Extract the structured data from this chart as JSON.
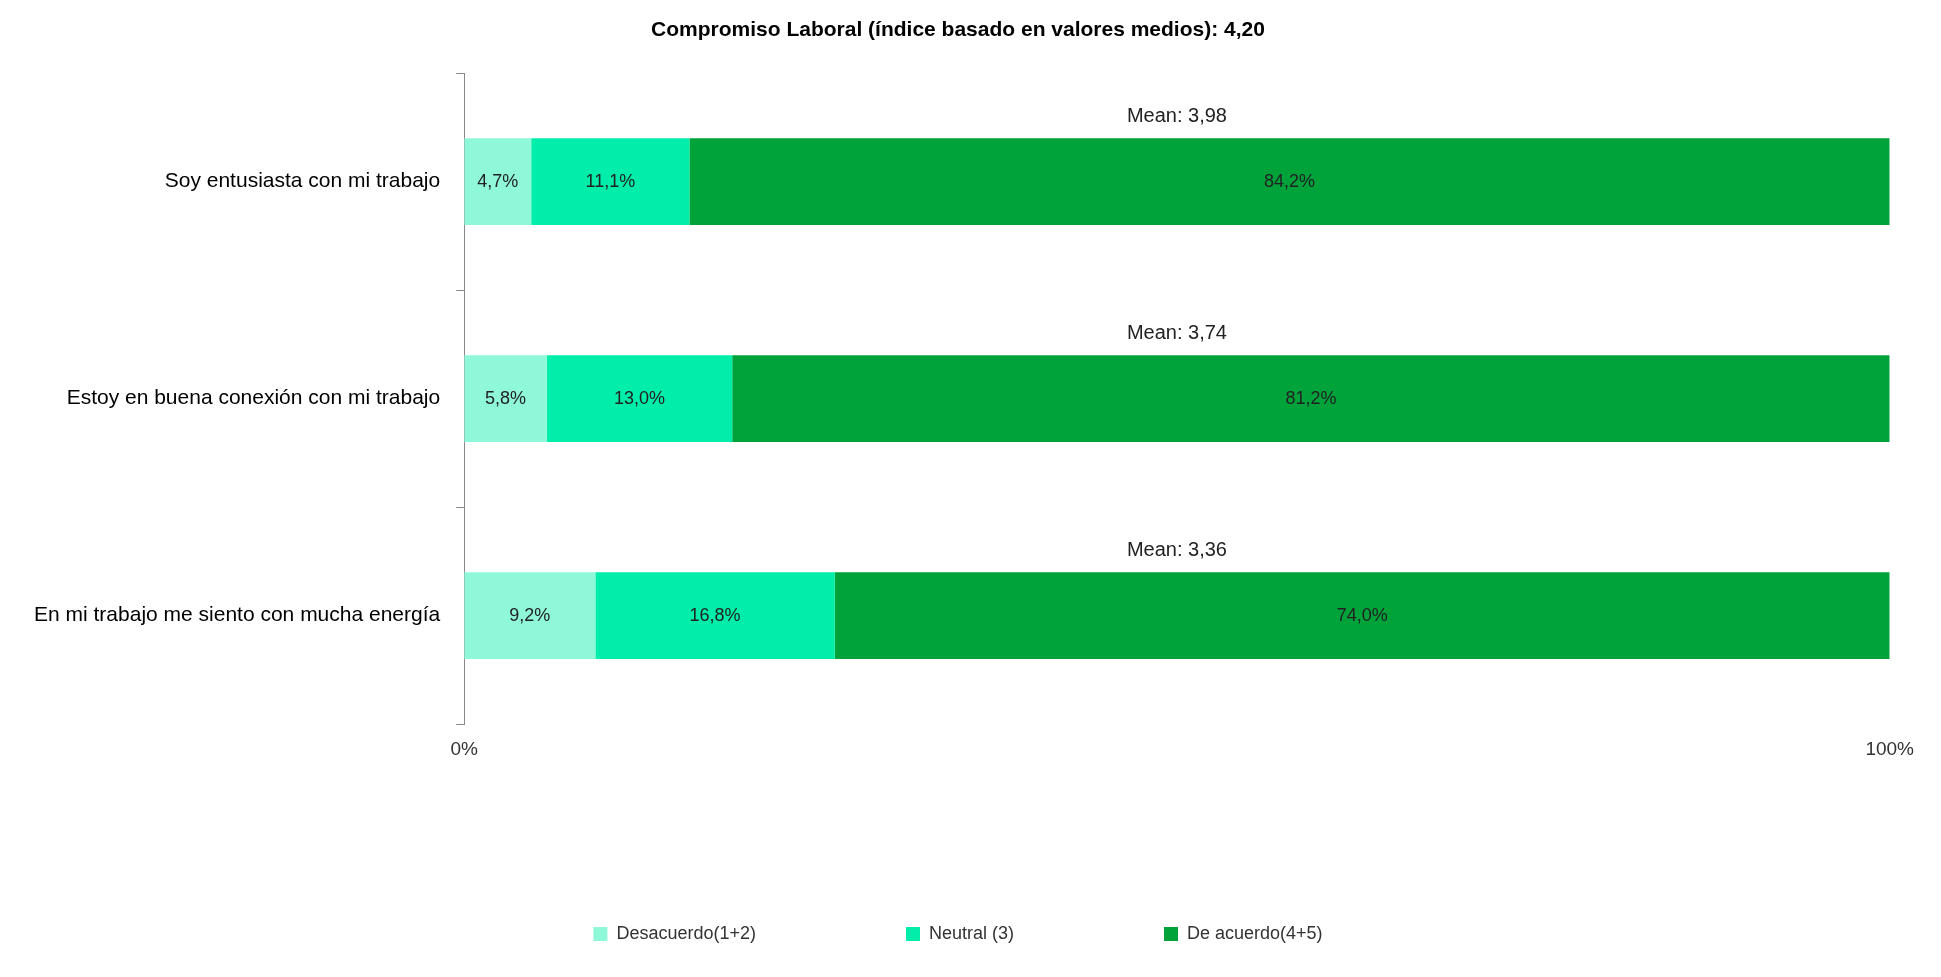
{
  "chart_data": {
    "type": "bar",
    "orientation": "horizontal",
    "stacked": true,
    "title": "Compromiso Laboral (índice basado en valores medios): 4,20",
    "categories": [
      "Soy entusiasta con mi trabajo",
      "Estoy en buena conexión con mi trabajo",
      "En mi trabajo me siento con mucha energía"
    ],
    "series": [
      {
        "name": "Desacuerdo(1+2)",
        "color": "#8ff8d8",
        "values": [
          4.7,
          5.8,
          9.2
        ],
        "value_labels": [
          "4,7%",
          "5,8%",
          "9,2%"
        ]
      },
      {
        "name": "Neutral (3)",
        "color": "#00eeaa",
        "values": [
          11.1,
          13.0,
          16.8
        ],
        "value_labels": [
          "11,1%",
          "13,0%",
          "16,8%"
        ]
      },
      {
        "name": "De acuerdo(4+5)",
        "color": "#00a23a",
        "values": [
          84.2,
          81.2,
          74.0
        ],
        "value_labels": [
          "84,2%",
          "81,2%",
          "74,0%"
        ]
      }
    ],
    "xlim": [
      0,
      100
    ],
    "xticks": [
      {
        "value": 0,
        "label": "0%"
      },
      {
        "value": 100,
        "label": "100%"
      }
    ],
    "annotations": [
      "Mean: 3,98",
      "Mean: 3,74",
      "Mean: 3,36"
    ],
    "legend": "bottom",
    "grid": false
  }
}
